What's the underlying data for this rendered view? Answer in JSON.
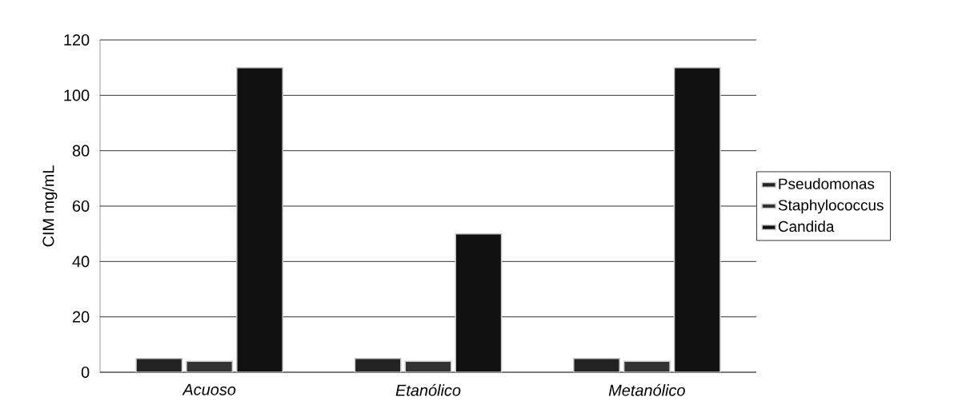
{
  "chart_data": {
    "type": "bar",
    "ylabel": "CIM mg/mL",
    "categories": [
      "Acuoso",
      "Etanólico",
      "Metanólico"
    ],
    "series": [
      {
        "name": "Pseudomonas",
        "color": "#222222",
        "values": [
          5,
          5,
          5
        ]
      },
      {
        "name": "Staphylococcus",
        "color": "#333333",
        "values": [
          4,
          4,
          4
        ]
      },
      {
        "name": "Candida",
        "color": "#111111",
        "values": [
          110,
          50,
          110
        ]
      }
    ],
    "ylim": [
      0,
      120
    ],
    "yticks": [
      0,
      20,
      40,
      60,
      80,
      100,
      120
    ],
    "grid": "y",
    "legend": "right"
  }
}
